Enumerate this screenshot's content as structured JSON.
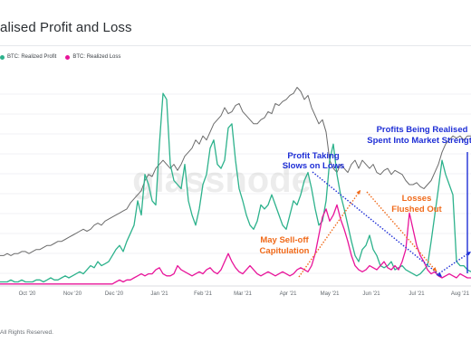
{
  "header": {
    "title": "alised Profit and Loss"
  },
  "footer": {
    "copyright": "All Rights Reserved."
  },
  "colors": {
    "profit": "#2db28c",
    "loss": "#e8149a",
    "price": "#6b6b6b",
    "blue": "#1f2fd6",
    "orange": "#f06a1a",
    "grid": "#eceef0"
  },
  "chart_data": {
    "type": "line",
    "title": "alised Profit and Loss",
    "xlabel": "",
    "ylabel": "",
    "legend": {
      "placement": "top-left",
      "entries": [
        "BTC: Realized Profit",
        "BTC: Realized Loss"
      ]
    },
    "grid": true,
    "watermark": "glassnode",
    "x_ticks": [
      "Oct '20",
      "Nov '20",
      "Dec '20",
      "Jan '21",
      "Feb '21",
      "Mar '21",
      "Apr '21",
      "May '21",
      "Jun '21",
      "Jul '21",
      "Aug '21"
    ],
    "series": [
      {
        "name": "BTC: Realized Profit",
        "key": "profit",
        "x": [
          0,
          4,
          8,
          12,
          16,
          20,
          24,
          28,
          32,
          36,
          40,
          44,
          48,
          52,
          56,
          60,
          64,
          68,
          72,
          76,
          80,
          84,
          88,
          92,
          96,
          100,
          104,
          108,
          112,
          116,
          120,
          124,
          128,
          132,
          136,
          140,
          144,
          148,
          152,
          156,
          160,
          164,
          168,
          172,
          176,
          180,
          184,
          188,
          192,
          196,
          200,
          204,
          208,
          212,
          216,
          220,
          224,
          228,
          232,
          236,
          240,
          244,
          248,
          252,
          256,
          260,
          264,
          268,
          272,
          276,
          280,
          284,
          288,
          292,
          296,
          300,
          304,
          308,
          312,
          316,
          320,
          324,
          328,
          332,
          336,
          340,
          344,
          348,
          352,
          356,
          360,
          364,
          368,
          372,
          376,
          380,
          384,
          388,
          392,
          396,
          400,
          404,
          408,
          412,
          416,
          420,
          424,
          428,
          432,
          436,
          440,
          444,
          448,
          452,
          456,
          460,
          464,
          468,
          472,
          476,
          480,
          484,
          488,
          492,
          496,
          500,
          504,
          508,
          512,
          516,
          520
        ],
        "values": [
          0.02,
          0.02,
          0.02,
          0.03,
          0.02,
          0.02,
          0.03,
          0.02,
          0.02,
          0.02,
          0.03,
          0.03,
          0.02,
          0.03,
          0.04,
          0.03,
          0.03,
          0.04,
          0.05,
          0.04,
          0.05,
          0.06,
          0.07,
          0.06,
          0.08,
          0.1,
          0.09,
          0.12,
          0.1,
          0.11,
          0.12,
          0.15,
          0.18,
          0.2,
          0.17,
          0.22,
          0.26,
          0.3,
          0.42,
          0.35,
          0.55,
          0.5,
          0.42,
          0.4,
          0.7,
          0.95,
          0.92,
          0.6,
          0.52,
          0.5,
          0.48,
          0.6,
          0.42,
          0.35,
          0.3,
          0.38,
          0.5,
          0.55,
          0.68,
          0.72,
          0.6,
          0.58,
          0.62,
          0.78,
          0.8,
          0.62,
          0.48,
          0.42,
          0.35,
          0.3,
          0.28,
          0.32,
          0.4,
          0.38,
          0.4,
          0.45,
          0.4,
          0.35,
          0.3,
          0.28,
          0.35,
          0.42,
          0.4,
          0.45,
          0.52,
          0.56,
          0.48,
          0.38,
          0.3,
          0.32,
          0.42,
          0.62,
          0.7,
          0.55,
          0.45,
          0.38,
          0.3,
          0.22,
          0.15,
          0.12,
          0.18,
          0.2,
          0.25,
          0.18,
          0.15,
          0.1,
          0.09,
          0.1,
          0.12,
          0.08,
          0.09,
          0.1,
          0.08,
          0.07,
          0.06,
          0.05,
          0.06,
          0.08,
          0.1,
          0.22,
          0.35,
          0.48,
          0.62,
          0.55,
          0.5,
          0.45,
          0.12,
          0.1,
          0.1,
          0.08,
          0.07
        ]
      },
      {
        "name": "BTC: Realized Loss",
        "key": "loss",
        "x": [
          0,
          4,
          8,
          12,
          16,
          20,
          24,
          28,
          32,
          36,
          40,
          44,
          48,
          52,
          56,
          60,
          64,
          68,
          72,
          76,
          80,
          84,
          88,
          92,
          96,
          100,
          104,
          108,
          112,
          116,
          120,
          124,
          128,
          132,
          136,
          140,
          144,
          148,
          152,
          156,
          160,
          164,
          168,
          172,
          176,
          180,
          184,
          188,
          192,
          196,
          200,
          204,
          208,
          212,
          216,
          220,
          224,
          228,
          232,
          236,
          240,
          244,
          248,
          252,
          256,
          260,
          264,
          268,
          272,
          276,
          280,
          284,
          288,
          292,
          296,
          300,
          304,
          308,
          312,
          316,
          320,
          324,
          328,
          332,
          336,
          340,
          344,
          348,
          352,
          356,
          360,
          364,
          368,
          372,
          376,
          380,
          384,
          388,
          392,
          396,
          400,
          404,
          408,
          412,
          416,
          420,
          424,
          428,
          432,
          436,
          440,
          444,
          448,
          452,
          456,
          460,
          464,
          468,
          472,
          476,
          480,
          484,
          488,
          492,
          496,
          500,
          504,
          508,
          512,
          516,
          520
        ],
        "values": [
          0.01,
          0.01,
          0.01,
          0.01,
          0.01,
          0.01,
          0.01,
          0.01,
          0.01,
          0.01,
          0.01,
          0.01,
          0.01,
          0.01,
          0.01,
          0.01,
          0.01,
          0.01,
          0.01,
          0.01,
          0.01,
          0.01,
          0.01,
          0.01,
          0.01,
          0.01,
          0.01,
          0.01,
          0.01,
          0.01,
          0.01,
          0.01,
          0.02,
          0.03,
          0.02,
          0.03,
          0.03,
          0.04,
          0.05,
          0.06,
          0.05,
          0.06,
          0.06,
          0.08,
          0.09,
          0.06,
          0.05,
          0.05,
          0.06,
          0.1,
          0.08,
          0.07,
          0.06,
          0.05,
          0.06,
          0.07,
          0.06,
          0.08,
          0.09,
          0.07,
          0.06,
          0.08,
          0.12,
          0.16,
          0.12,
          0.09,
          0.07,
          0.06,
          0.08,
          0.1,
          0.08,
          0.06,
          0.05,
          0.06,
          0.07,
          0.06,
          0.05,
          0.06,
          0.07,
          0.06,
          0.05,
          0.06,
          0.08,
          0.09,
          0.08,
          0.07,
          0.1,
          0.16,
          0.25,
          0.34,
          0.38,
          0.32,
          0.35,
          0.4,
          0.33,
          0.28,
          0.22,
          0.15,
          0.1,
          0.08,
          0.07,
          0.08,
          0.1,
          0.09,
          0.08,
          0.1,
          0.12,
          0.09,
          0.08,
          0.1,
          0.08,
          0.12,
          0.18,
          0.36,
          0.28,
          0.2,
          0.15,
          0.12,
          0.08,
          0.06,
          0.07,
          0.05,
          0.04,
          0.05,
          0.06,
          0.05,
          0.04,
          0.06,
          0.05,
          0.04,
          0.04
        ]
      },
      {
        "name": "",
        "key": "price",
        "x": [
          0,
          4,
          8,
          12,
          16,
          20,
          24,
          28,
          32,
          36,
          40,
          44,
          48,
          52,
          56,
          60,
          64,
          68,
          72,
          76,
          80,
          84,
          88,
          92,
          96,
          100,
          104,
          108,
          112,
          116,
          120,
          124,
          128,
          132,
          136,
          140,
          144,
          148,
          152,
          156,
          160,
          164,
          168,
          172,
          176,
          180,
          184,
          188,
          192,
          196,
          200,
          204,
          208,
          212,
          216,
          220,
          224,
          228,
          232,
          236,
          240,
          244,
          248,
          252,
          256,
          260,
          264,
          268,
          272,
          276,
          280,
          284,
          288,
          292,
          296,
          300,
          304,
          308,
          312,
          316,
          320,
          324,
          328,
          332,
          336,
          340,
          344,
          348,
          352,
          356,
          360,
          364,
          368,
          372,
          376,
          380,
          384,
          388,
          392,
          396,
          400,
          404,
          408,
          412,
          416,
          420,
          424,
          428,
          432,
          436,
          440,
          444,
          448,
          452,
          456,
          460,
          464,
          468,
          472,
          476,
          480,
          484,
          488,
          492,
          496,
          500,
          504,
          508,
          512,
          516,
          520
        ],
        "values": [
          0.15,
          0.15,
          0.16,
          0.15,
          0.16,
          0.16,
          0.17,
          0.17,
          0.16,
          0.17,
          0.18,
          0.18,
          0.19,
          0.2,
          0.2,
          0.21,
          0.22,
          0.22,
          0.23,
          0.24,
          0.25,
          0.26,
          0.27,
          0.28,
          0.27,
          0.28,
          0.3,
          0.31,
          0.3,
          0.32,
          0.33,
          0.34,
          0.35,
          0.36,
          0.37,
          0.38,
          0.41,
          0.43,
          0.45,
          0.47,
          0.52,
          0.55,
          0.54,
          0.58,
          0.6,
          0.62,
          0.6,
          0.58,
          0.6,
          0.57,
          0.6,
          0.64,
          0.66,
          0.68,
          0.72,
          0.7,
          0.74,
          0.72,
          0.76,
          0.8,
          0.82,
          0.84,
          0.88,
          0.85,
          0.86,
          0.89,
          0.9,
          0.86,
          0.84,
          0.82,
          0.8,
          0.8,
          0.82,
          0.83,
          0.86,
          0.85,
          0.9,
          0.89,
          0.91,
          0.92,
          0.94,
          0.95,
          0.98,
          0.96,
          0.92,
          0.94,
          0.88,
          0.84,
          0.8,
          0.82,
          0.76,
          0.62,
          0.58,
          0.56,
          0.6,
          0.58,
          0.56,
          0.6,
          0.62,
          0.58,
          0.62,
          0.6,
          0.58,
          0.6,
          0.56,
          0.55,
          0.57,
          0.58,
          0.55,
          0.57,
          0.56,
          0.55,
          0.52,
          0.5,
          0.5,
          0.51,
          0.49,
          0.48,
          0.5,
          0.52,
          0.56,
          0.6,
          0.66,
          0.7,
          0.72,
          0.74,
          0.73,
          0.74,
          0.72,
          0.74,
          0.74
        ]
      }
    ],
    "annotations": [
      {
        "text": "Profit Taking",
        "color": "blue"
      },
      {
        "text": "Slows on Lows",
        "color": "blue"
      },
      {
        "text": "Profits Being Realised",
        "color": "blue"
      },
      {
        "text": "Spent Into Market Strength",
        "color": "blue"
      },
      {
        "text": "Losses",
        "color": "orange"
      },
      {
        "text": "Flushed Out",
        "color": "orange"
      },
      {
        "text": "May Sell-off",
        "color": "orange"
      },
      {
        "text": "Capitulation",
        "color": "orange"
      }
    ]
  }
}
